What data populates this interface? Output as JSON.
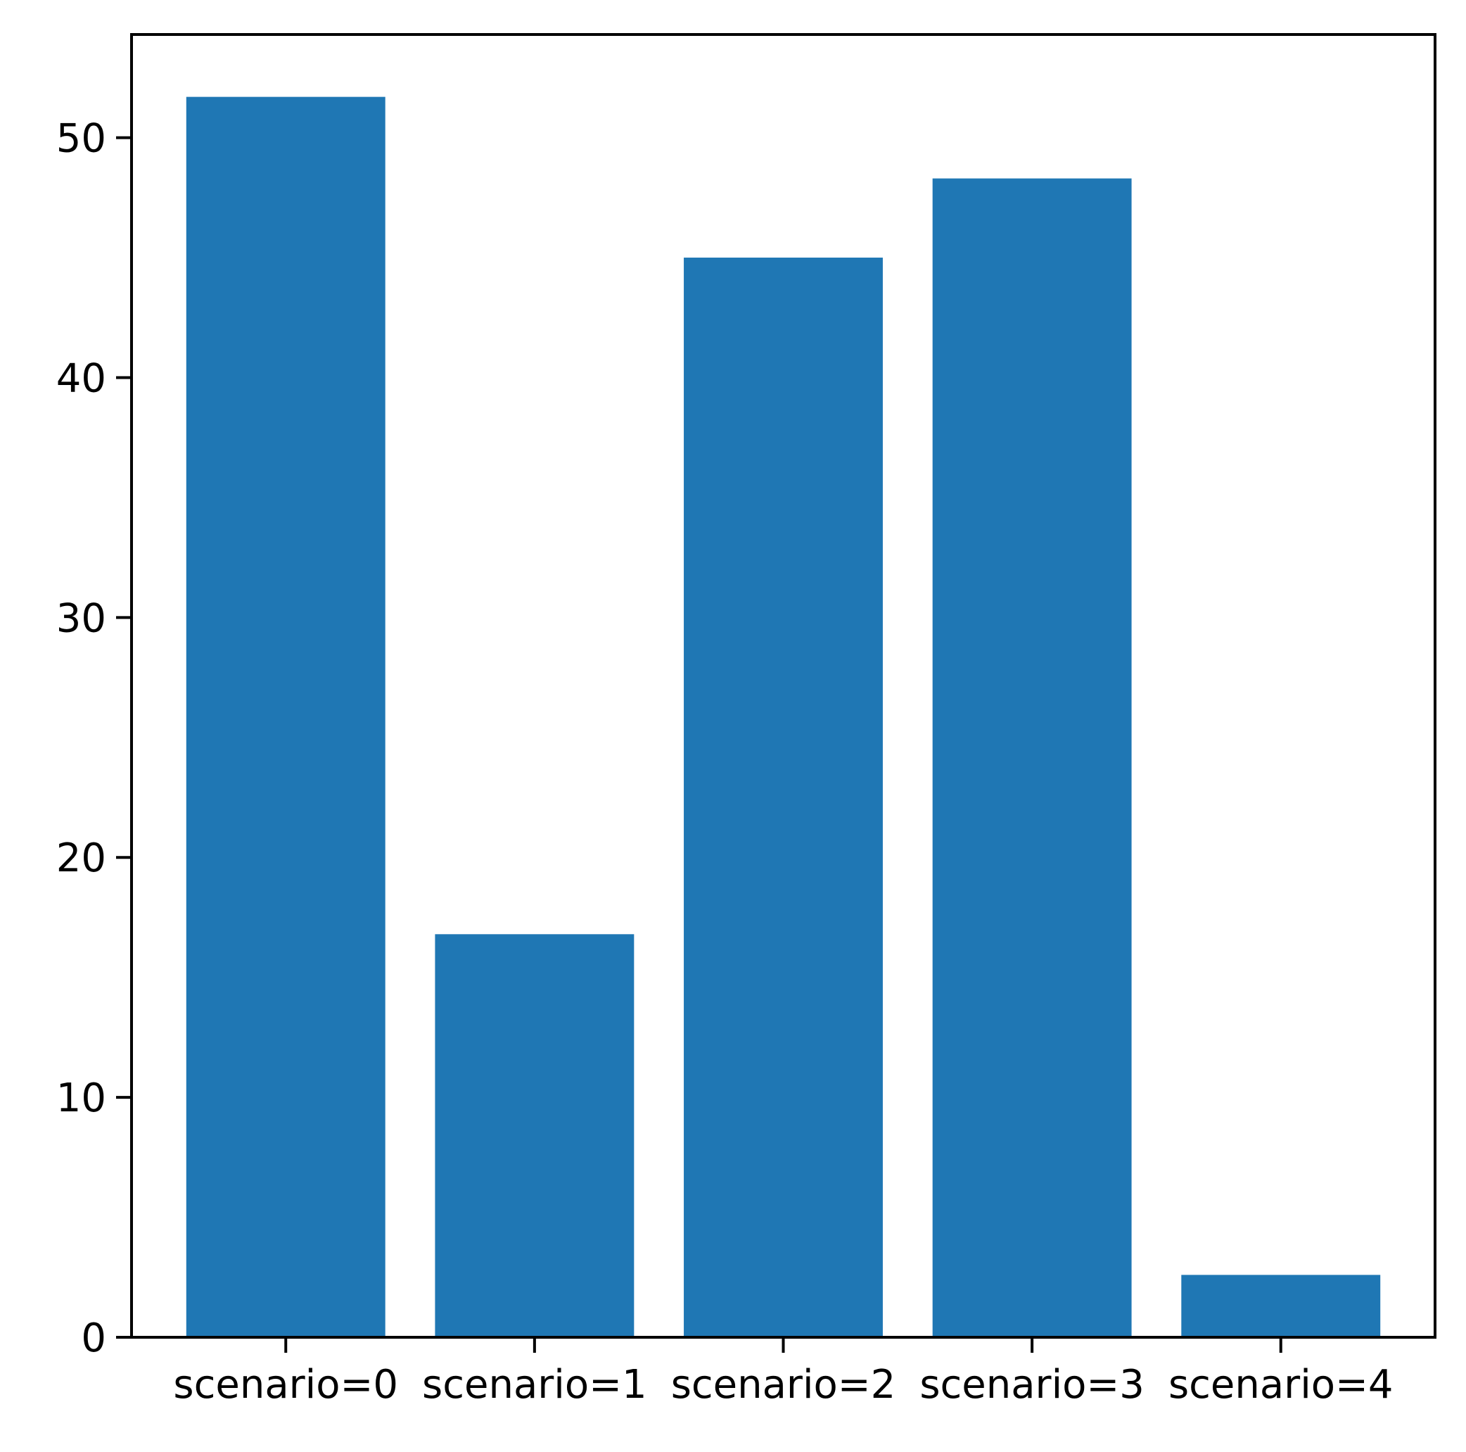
{
  "chart_data": {
    "type": "bar",
    "categories": [
      "scenario=0",
      "scenario=1",
      "scenario=2",
      "scenario=3",
      "scenario=4"
    ],
    "values": [
      51.7,
      16.8,
      45.0,
      48.3,
      2.6
    ],
    "title": "",
    "xlabel": "",
    "ylabel": "",
    "ylim": [
      0,
      54.3
    ],
    "yticks": [
      0,
      10,
      20,
      30,
      40,
      50
    ],
    "grid": false,
    "bar_color": "#1f77b4"
  }
}
